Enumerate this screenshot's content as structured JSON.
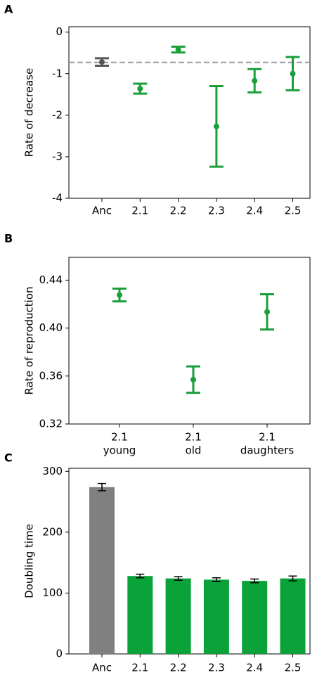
{
  "chart_data": [
    {
      "type": "errorbar",
      "panel": "A",
      "y_label": "Rate of decrease",
      "categories": [
        "Anc",
        "2.1",
        "2.2",
        "2.3",
        "2.4",
        "2.5"
      ],
      "values": [
        -0.72,
        -1.36,
        -0.42,
        -2.27,
        -1.17,
        -1.0
      ],
      "errors": [
        0.09,
        0.12,
        0.07,
        0.97,
        0.28,
        0.4
      ],
      "colors": [
        "#555555",
        "#1a9e3a",
        "#1a9e3a",
        "#1a9e3a",
        "#1a9e3a",
        "#1a9e3a"
      ],
      "reference_line": -0.73,
      "reference_color": "#999999",
      "ylim": [
        -4,
        0.13
      ],
      "yticks": [
        0,
        -1,
        -2,
        -3,
        -4
      ]
    },
    {
      "type": "errorbar",
      "panel": "B",
      "y_label": "Rate of reproduction",
      "categories": [
        [
          "2.1",
          "young"
        ],
        [
          "2.1",
          "old"
        ],
        [
          "2.1",
          "daughters"
        ]
      ],
      "values": [
        0.4276,
        0.357,
        0.4135
      ],
      "errors": [
        0.0053,
        0.011,
        0.0147
      ],
      "colors": [
        "#1a9e3a",
        "#1a9e3a",
        "#1a9e3a"
      ],
      "ylim": [
        0.32,
        0.459
      ],
      "yticks": [
        0.32,
        0.36,
        {
          "value": 0.4,
          "label": "0.40"
        },
        0.44
      ]
    },
    {
      "type": "bar",
      "panel": "C",
      "y_label": "Doubling time",
      "categories": [
        "Anc",
        "2.1",
        "2.2",
        "2.3",
        "2.4",
        "2.5"
      ],
      "values": [
        274,
        128,
        124,
        122,
        120,
        124
      ],
      "errors": [
        6,
        3,
        3,
        3,
        3,
        4
      ],
      "colors": [
        "#808080",
        "#0aa33a",
        "#0aa33a",
        "#0aa33a",
        "#0aa33a",
        "#0aa33a"
      ],
      "ylim": [
        0,
        305
      ],
      "yticks": [
        0,
        100,
        200,
        300
      ]
    }
  ]
}
